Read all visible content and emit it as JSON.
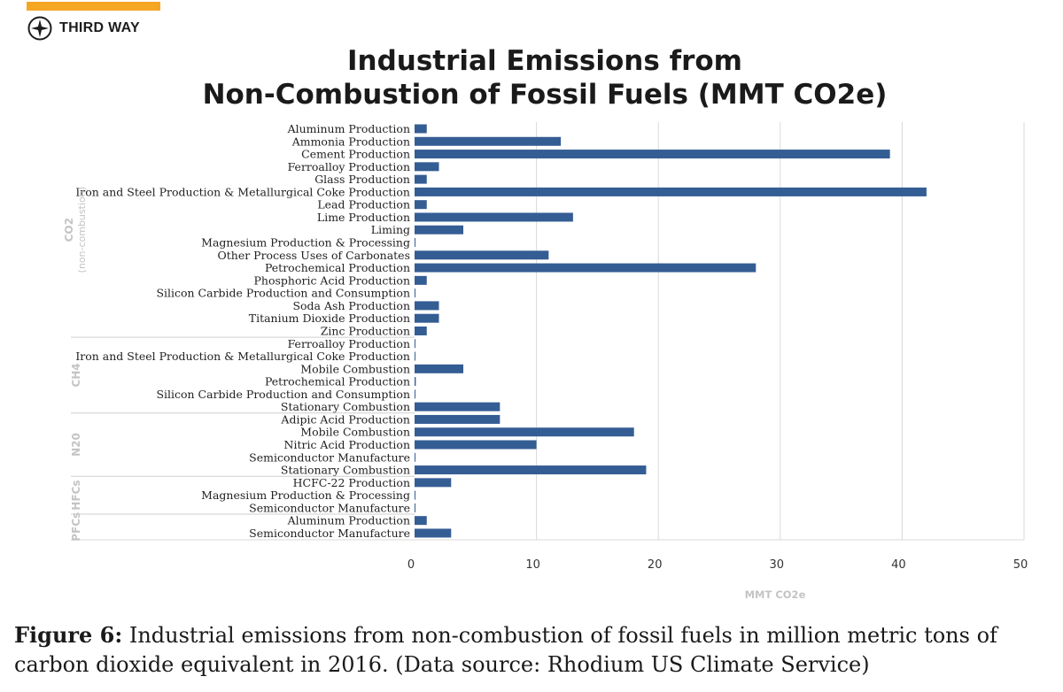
{
  "brand": {
    "name": "THIRD WAY",
    "logo_icon": "compass-star-icon",
    "accent_color": "#f5a623"
  },
  "figure": {
    "title_line1": "Industrial Emissions from",
    "title_line2": "Non-Combustion of Fossil Fuels (MMT CO2e)",
    "caption_label": "Figure 6:",
    "caption_text": " Industrial emissions from non-combustion of fossil fuels in million metric tons of carbon dioxide equivalent in 2016. (Data source: Rhodium US Climate Service)"
  },
  "chart_data": {
    "type": "bar",
    "orientation": "horizontal",
    "bar_color": "#345d94",
    "xlabel": "MMT CO2e",
    "xlim": [
      0,
      50
    ],
    "xticks": [
      0,
      10,
      20,
      30,
      40,
      50
    ],
    "grid": true,
    "groups": [
      {
        "name": "CO2\n(non-combustion)",
        "categories": [
          {
            "label": "Aluminum Production",
            "value": 1
          },
          {
            "label": "Ammonia Production",
            "value": 12
          },
          {
            "label": "Cement Production",
            "value": 39
          },
          {
            "label": "Ferroalloy Production",
            "value": 2
          },
          {
            "label": "Glass Production",
            "value": 1
          },
          {
            "label": "Iron and Steel Production & Metallurgical Coke Production",
            "value": 42
          },
          {
            "label": "Lead Production",
            "value": 1
          },
          {
            "label": "Lime Production",
            "value": 13
          },
          {
            "label": "Liming",
            "value": 4
          },
          {
            "label": "Magnesium Production & Processing",
            "value": 0
          },
          {
            "label": "Other Process Uses of Carbonates",
            "value": 11
          },
          {
            "label": "Petrochemical Production",
            "value": 28
          },
          {
            "label": "Phosphoric Acid Production",
            "value": 1
          },
          {
            "label": "Silicon Carbide Production and Consumption",
            "value": 0
          },
          {
            "label": "Soda Ash Production",
            "value": 2
          },
          {
            "label": "Titanium Dioxide Production",
            "value": 2
          },
          {
            "label": "Zinc Production",
            "value": 1
          }
        ]
      },
      {
        "name": "CH4",
        "categories": [
          {
            "label": "Ferroalloy Production",
            "value": 0.05
          },
          {
            "label": "Iron and Steel Production & Metallurgical Coke Production",
            "value": 0.05
          },
          {
            "label": "Mobile Combustion",
            "value": 4
          },
          {
            "label": "Petrochemical Production",
            "value": 0.1
          },
          {
            "label": "Silicon Carbide Production and Consumption",
            "value": 0.05
          },
          {
            "label": "Stationary Combustion",
            "value": 7
          }
        ]
      },
      {
        "name": "N20",
        "categories": [
          {
            "label": "Adipic Acid Production",
            "value": 7
          },
          {
            "label": "Mobile Combustion",
            "value": 18
          },
          {
            "label": "Nitric Acid Production",
            "value": 10
          },
          {
            "label": "Semiconductor Manufacture",
            "value": 0.05
          },
          {
            "label": "Stationary Combustion",
            "value": 19
          }
        ]
      },
      {
        "name": "HFCs",
        "categories": [
          {
            "label": "HCFC-22 Production",
            "value": 3
          },
          {
            "label": "Magnesium Production & Processing",
            "value": 0.05
          },
          {
            "label": "Semiconductor Manufacture",
            "value": 0.05
          }
        ]
      },
      {
        "name": "PFCs",
        "categories": [
          {
            "label": "Aluminum Production",
            "value": 1
          },
          {
            "label": "Semiconductor Manufacture",
            "value": 3
          }
        ]
      }
    ]
  }
}
